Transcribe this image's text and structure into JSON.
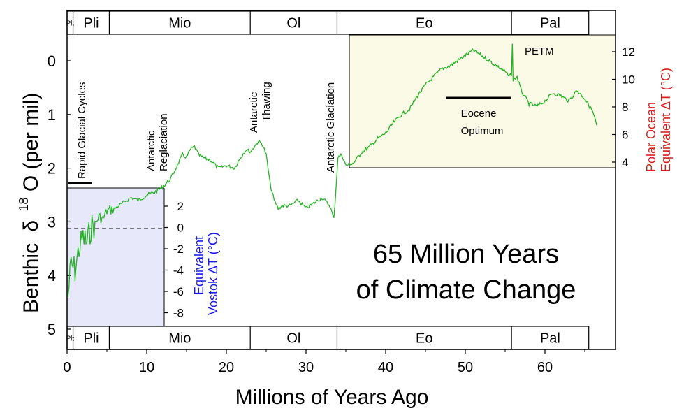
{
  "chart_data": {
    "type": "line",
    "title_line1": "65 Million Years",
    "title_line2": "of Climate Change",
    "xlabel": "Millions of Years Ago",
    "ylabel_main": "Benthic",
    "ylabel_delta": "δ",
    "ylabel_sup": "18",
    "ylabel_tail": "O (per mil)",
    "right_axis_label_line1": "Polar Ocean",
    "right_axis_label_line2": "Equivalent  ΔT (°C)",
    "inset_axis_label_line1": "Equivalent",
    "inset_axis_label_line2": "Vostok  ΔT (°C)",
    "xlim": [
      0,
      68
    ],
    "ylim": [
      0,
      5
    ],
    "y_reversed": true,
    "x_ticks": [
      "0",
      "10",
      "20",
      "30",
      "40",
      "50",
      "60"
    ],
    "y_ticks": [
      "0",
      "1",
      "2",
      "3",
      "4",
      "5"
    ],
    "right_ticks": [
      "12",
      "10",
      "8",
      "6",
      "4"
    ],
    "inset_ticks": [
      "2",
      "0",
      "-2",
      "-4",
      "-6",
      "-8"
    ],
    "epochs": [
      {
        "label": "Plt",
        "start": 0,
        "end": 0.75
      },
      {
        "label": "Pli",
        "start": 0.75,
        "end": 5.3
      },
      {
        "label": "Mio",
        "start": 5.3,
        "end": 23
      },
      {
        "label": "Ol",
        "start": 23,
        "end": 33.9
      },
      {
        "label": "Eo",
        "start": 33.9,
        "end": 55.8
      },
      {
        "label": "Pal",
        "start": 55.8,
        "end": 65.5
      }
    ],
    "annotations": {
      "rapid_glacial": "Rapid Glacial Cycles",
      "antarctic_reglaciation_l1": "Antarctic",
      "antarctic_reglaciation_l2": "Reglaciation",
      "antarctic_thawing_l1": "Antarctic",
      "antarctic_thawing_l2": "Thawing",
      "antarctic_glaciation": "Antarctic Glaciation",
      "petm": "PETM",
      "eocene_l1": "Eocene",
      "eocene_l2": "Optimum"
    },
    "series": [
      {
        "x": [
          0.1,
          0.5,
          1.0,
          1.5,
          2.0,
          2.5,
          3.0,
          3.5,
          4.0,
          4.5,
          5.0,
          6.0,
          7.0,
          8.0,
          9.0,
          10.0,
          11.0,
          12.0,
          13.0,
          14.0,
          14.5,
          15.0,
          15.5,
          16.0,
          16.5,
          17.0,
          18.0,
          19.0,
          20.0,
          21.0,
          22.0,
          22.5,
          23.0,
          23.5,
          24.0,
          24.5,
          25.0,
          25.5,
          26.0,
          26.5,
          27.0,
          28.0,
          29.0,
          30.0,
          31.0,
          32.0,
          33.0,
          33.5,
          33.8,
          34.0,
          34.5,
          35.0,
          36.0,
          37.0,
          38.0,
          39.0,
          40.0,
          41.0,
          42.0,
          43.0,
          44.0,
          45.0,
          46.0,
          47.0,
          48.0,
          49.0,
          50.0,
          51.0,
          52.0,
          53.0,
          54.0,
          55.0,
          55.5,
          55.8,
          55.9,
          56.0,
          56.5,
          57.0,
          58.0,
          59.0,
          60.0,
          61.0,
          62.0,
          63.0,
          64.0,
          65.0,
          66.0,
          66.5
        ],
        "y": [
          4.4,
          3.8,
          3.9,
          3.5,
          3.3,
          3.4,
          3.1,
          3.05,
          2.9,
          2.95,
          2.8,
          2.75,
          2.65,
          2.55,
          2.6,
          2.5,
          2.45,
          2.35,
          2.2,
          1.9,
          1.75,
          1.8,
          1.65,
          1.6,
          1.75,
          1.8,
          1.85,
          2.0,
          1.95,
          2.0,
          1.75,
          1.65,
          1.7,
          1.6,
          1.5,
          1.55,
          1.75,
          2.3,
          2.6,
          2.75,
          2.7,
          2.7,
          2.6,
          2.75,
          2.65,
          2.55,
          2.7,
          2.95,
          2.3,
          1.8,
          1.75,
          1.95,
          1.9,
          1.7,
          1.6,
          1.45,
          1.35,
          1.15,
          1.0,
          0.9,
          0.65,
          0.45,
          0.3,
          0.15,
          0.1,
          0.0,
          -0.1,
          -0.2,
          -0.1,
          0.0,
          0.1,
          0.2,
          0.3,
          0.25,
          -0.3,
          0.35,
          0.3,
          0.55,
          0.8,
          0.85,
          0.75,
          0.6,
          0.65,
          0.75,
          0.55,
          0.7,
          0.95,
          1.2
        ]
      }
    ]
  }
}
